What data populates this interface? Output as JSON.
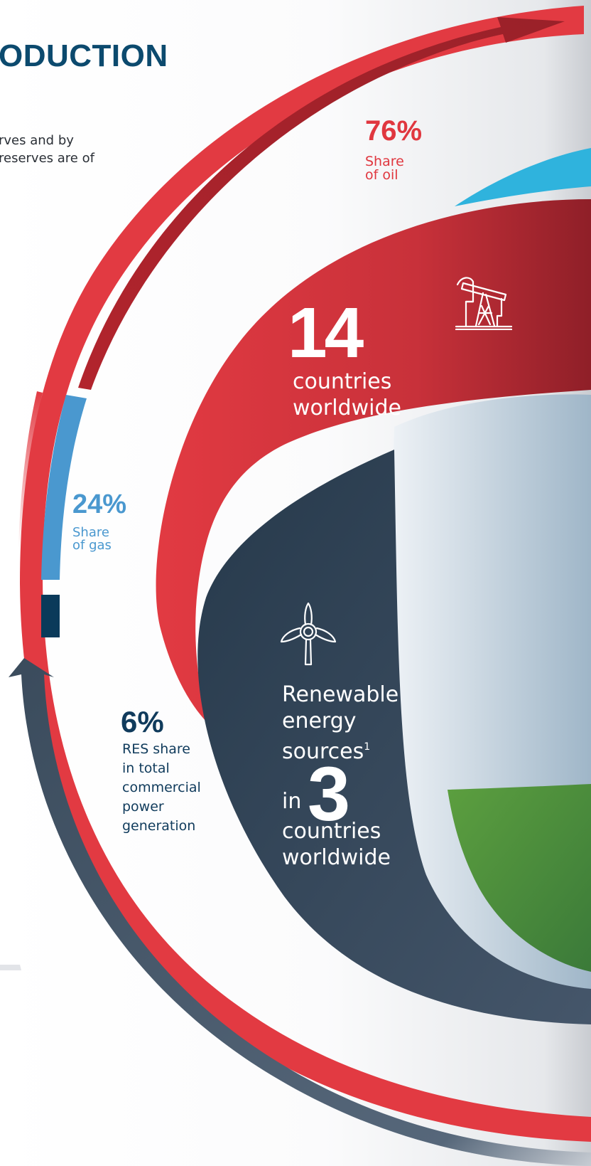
{
  "heading": "ODUCTION",
  "intro": {
    "line1": "rves and by",
    "line2": "reserves are of"
  },
  "oil": {
    "percent": "76%",
    "label_line1": "Share",
    "label_line2": "of oil",
    "share": 76
  },
  "gas": {
    "percent": "24%",
    "label_line1": "Share",
    "label_line2": "of gas",
    "share": 24
  },
  "res": {
    "percent": "6%",
    "label_lines": [
      "RES share",
      "in total",
      "commercial",
      "power",
      "generation"
    ]
  },
  "production": {
    "number": "14",
    "label_line1": "countries",
    "label_line2": "worldwide",
    "icon": "oil-pump-icon"
  },
  "renewables": {
    "label_line1": "Renewable",
    "label_line2": "energy",
    "label_line3": "sources",
    "footnote": "1",
    "in": "in",
    "number": "3",
    "label_line4": "countries",
    "label_line5": "worldwide",
    "icon": "wind-turbine-icon"
  },
  "colors": {
    "oil": "#e0373f",
    "gas": "#4a98cf",
    "navy": "#103b5c",
    "slate": "#2c3e50",
    "green": "#4f9a44",
    "cyan": "#2fb3dd"
  }
}
